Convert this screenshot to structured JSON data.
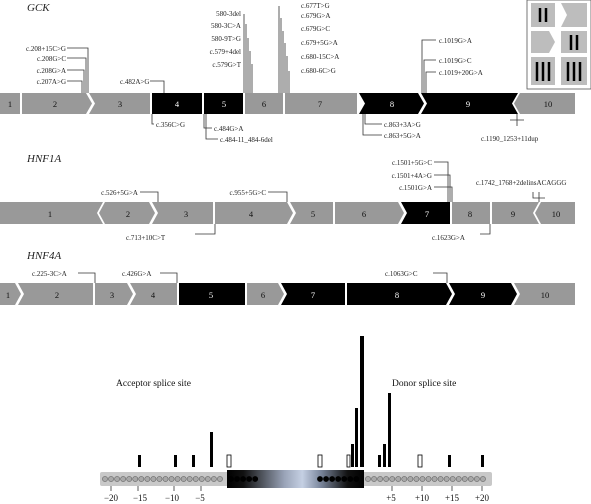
{
  "genes": [
    {
      "name": "GCK",
      "exons": [
        "1",
        "2",
        "3",
        "4",
        "5",
        "6",
        "7",
        "8",
        "9",
        "10"
      ],
      "mutations": [
        "c.208+15C>G",
        "c.208G>C",
        "c.208G>A",
        "c.207A>G",
        "580-3del",
        "580-3C>A",
        "580-9T>G",
        "c.579+4del",
        "c.579G>T",
        "c.482A>G",
        "c.677T>G",
        "c.679G>A",
        "c.679G>C",
        "c.679+5G>A",
        "c.680-15C>A",
        "c.680-6C>G",
        "c.1019G>A",
        "c.1019G>C",
        "c.1019+20G>A",
        "c.356C>G",
        "c.484G>A",
        "c.484-11_484-6del",
        "c.863+3A>G",
        "c.863+5G>A",
        "c.1190_1253+11dup"
      ]
    },
    {
      "name": "HNF1A",
      "exons": [
        "1",
        "2",
        "3",
        "4",
        "5",
        "6",
        "7",
        "8",
        "9",
        "10"
      ],
      "mutations": [
        "c.526+5G>A",
        "c.955+5G>C",
        "c.1501+5G>C",
        "c.1501+4A>G",
        "c.1501G>A",
        "c.1742_1768+2delinsACAGGG",
        "c.713+10C>T",
        "c.1623G>A"
      ]
    },
    {
      "name": "HNF4A",
      "exons": [
        "1",
        "2",
        "3",
        "4",
        "5",
        "6",
        "7",
        "8",
        "9",
        "10"
      ],
      "mutations": [
        "c.225-3C>A",
        "c.426G>A",
        "c.1063G>C"
      ]
    }
  ],
  "splice": {
    "acceptor_label": "Acceptor splice site",
    "donor_label": "Donor splice site",
    "ticks": [
      "−20",
      "−15",
      "−10",
      "−5",
      "+5",
      "+10",
      "+15",
      "+20"
    ]
  }
}
